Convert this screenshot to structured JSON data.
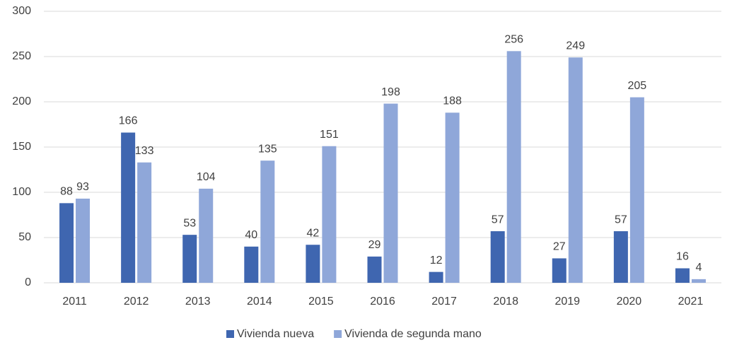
{
  "chart_data": {
    "type": "bar",
    "categories": [
      "2011",
      "2012",
      "2013",
      "2014",
      "2015",
      "2016",
      "2017",
      "2018",
      "2019",
      "2020",
      "2021"
    ],
    "series": [
      {
        "name": "Vivienda nueva",
        "color": "#3f66b0",
        "values": [
          88,
          166,
          53,
          40,
          42,
          29,
          12,
          57,
          27,
          57,
          16
        ]
      },
      {
        "name": "Vivienda de segunda mano",
        "color": "#8fa7d9",
        "values": [
          93,
          133,
          104,
          135,
          151,
          198,
          188,
          256,
          249,
          205,
          4
        ]
      }
    ],
    "ylim": [
      0,
      300
    ],
    "yticks": [
      0,
      50,
      100,
      150,
      200,
      250,
      300
    ],
    "grid": true,
    "legend": "bottom"
  }
}
